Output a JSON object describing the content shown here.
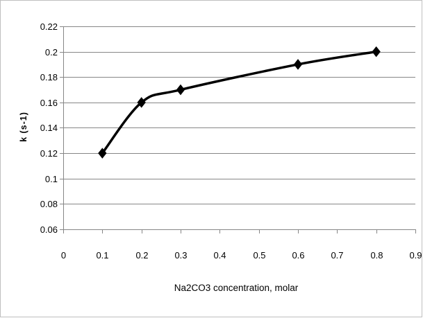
{
  "chart_data": {
    "type": "line",
    "title": "",
    "xlabel": "Na2CO3 concentration, molar",
    "ylabel": "k (s-1)",
    "xlim": [
      0,
      0.9
    ],
    "ylim": [
      0.06,
      0.22
    ],
    "x_ticks": [
      "0",
      "0.1",
      "0.2",
      "0.3",
      "0.4",
      "0.5",
      "0.6",
      "0.7",
      "0.8",
      "0.9"
    ],
    "y_ticks": [
      "0.06",
      "0.08",
      "0.1",
      "0.12",
      "0.14",
      "0.16",
      "0.18",
      "0.2",
      "0.22"
    ],
    "grid": "horizontal",
    "legend": "none",
    "smooth": true,
    "marker": "diamond",
    "series": [
      {
        "x": [
          0.1,
          0.2,
          0.3,
          0.6,
          0.8
        ],
        "values": [
          0.12,
          0.16,
          0.17,
          0.19,
          0.2
        ],
        "color": "#000000"
      }
    ]
  }
}
